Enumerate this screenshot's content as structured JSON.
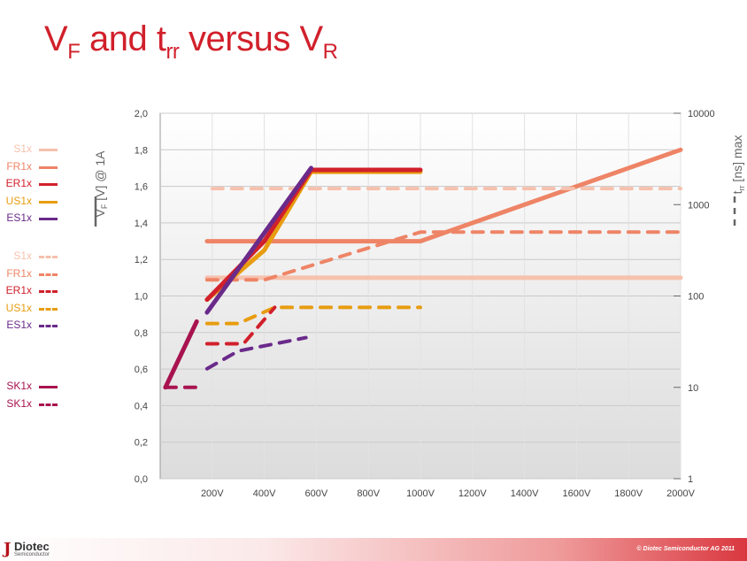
{
  "title": {
    "v": "V",
    "v_sub": "F",
    "and": " and t",
    "t_sub": "rr",
    "versus": " versus V",
    "r_sub": "R"
  },
  "legend": {
    "solid_items": [
      {
        "label": "S1x",
        "color": "#f6c1ad"
      },
      {
        "label": "FR1x",
        "color": "#ee8466"
      },
      {
        "label": "ER1x",
        "color": "#d1202b"
      },
      {
        "label": "US1x",
        "color": "#e89c0f"
      },
      {
        "label": "ES1x",
        "color": "#6a2a8a"
      }
    ],
    "dashed_items": [
      {
        "label": "S1x",
        "color": "#f6c1ad"
      },
      {
        "label": "FR1x",
        "color": "#ee8466"
      },
      {
        "label": "ER1x",
        "color": "#d1202b"
      },
      {
        "label": "US1x",
        "color": "#e89c0f"
      },
      {
        "label": "ES1x",
        "color": "#6a2a8a"
      }
    ],
    "sk_items": [
      {
        "label": "SK1x",
        "color": "#a8134f",
        "dashed": false
      },
      {
        "label": "SK1x",
        "color": "#a8134f",
        "dashed": true
      }
    ]
  },
  "chart_data": {
    "type": "line",
    "left_axis": {
      "label_main": "V",
      "label_sub": "F",
      "label_rest": " [V] @ 1A",
      "ylim": [
        0,
        2.0
      ],
      "ticks": [
        "0,0",
        "0,2",
        "0,4",
        "0,6",
        "0,8",
        "1,0",
        "1,2",
        "1,4",
        "1,6",
        "1,8",
        "2,0"
      ]
    },
    "right_axis": {
      "label_main": "t",
      "label_sub": "rr",
      "label_rest": " [ns] max",
      "scale": "log",
      "ylim": [
        1,
        10000
      ],
      "ticks": [
        "1",
        "10",
        "100",
        "1000",
        "10000"
      ]
    },
    "x_axis": {
      "range": [
        0,
        2000
      ],
      "ticks": [
        {
          "value": 200,
          "label": "200V"
        },
        {
          "value": 400,
          "label": "400V"
        },
        {
          "value": 600,
          "label": "600V"
        },
        {
          "value": 800,
          "label": "800V"
        },
        {
          "value": 1000,
          "label": "1000V"
        },
        {
          "value": 1200,
          "label": "1200V"
        },
        {
          "value": 1400,
          "label": "1400V"
        },
        {
          "value": 1600,
          "label": "1600V"
        },
        {
          "value": 1800,
          "label": "1800V"
        },
        {
          "value": 2000,
          "label": "2000V"
        }
      ]
    },
    "grid": true,
    "series": [
      {
        "name": "S1x",
        "measure": "VF",
        "color": "#f6c1ad",
        "dashed": false,
        "axis": "left",
        "points": [
          [
            180,
            1.1
          ],
          [
            2000,
            1.1
          ]
        ]
      },
      {
        "name": "FR1x",
        "measure": "VF",
        "color": "#ee8466",
        "dashed": false,
        "axis": "left",
        "points": [
          [
            180,
            1.3
          ],
          [
            1000,
            1.3
          ],
          [
            2000,
            1.8
          ]
        ]
      },
      {
        "name": "US1x",
        "measure": "VF",
        "color": "#e89c0f",
        "dashed": false,
        "axis": "left",
        "points": [
          [
            180,
            0.98
          ],
          [
            400,
            1.25
          ],
          [
            580,
            1.68
          ],
          [
            1000,
            1.68
          ]
        ]
      },
      {
        "name": "ER1x",
        "measure": "VF",
        "color": "#d1202b",
        "dashed": false,
        "axis": "left",
        "points": [
          [
            180,
            0.98
          ],
          [
            400,
            1.3
          ],
          [
            580,
            1.69
          ],
          [
            1000,
            1.69
          ]
        ]
      },
      {
        "name": "ES1x",
        "measure": "VF",
        "color": "#6a2a8a",
        "dashed": false,
        "axis": "left",
        "points": [
          [
            180,
            0.91
          ],
          [
            580,
            1.7
          ]
        ]
      },
      {
        "name": "SK1x",
        "measure": "VF",
        "color": "#a8134f",
        "dashed": false,
        "axis": "left",
        "points": [
          [
            20,
            0.5
          ],
          [
            140,
            0.86
          ]
        ]
      },
      {
        "name": "S1x",
        "measure": "trr",
        "color": "#f6c1ad",
        "dashed": true,
        "axis": "right",
        "points": [
          [
            200,
            1500
          ],
          [
            2000,
            1500
          ]
        ]
      },
      {
        "name": "FR1x",
        "measure": "trr",
        "color": "#ee8466",
        "dashed": true,
        "axis": "right",
        "points": [
          [
            180,
            150
          ],
          [
            400,
            150
          ],
          [
            1000,
            500
          ],
          [
            2000,
            500
          ]
        ]
      },
      {
        "name": "US1x",
        "measure": "trr",
        "color": "#e89c0f",
        "dashed": true,
        "axis": "right",
        "points": [
          [
            180,
            50
          ],
          [
            300,
            50
          ],
          [
            440,
            75
          ],
          [
            1000,
            75
          ]
        ]
      },
      {
        "name": "ER1x",
        "measure": "trr",
        "color": "#d1202b",
        "dashed": true,
        "axis": "right",
        "points": [
          [
            180,
            30
          ],
          [
            320,
            30
          ],
          [
            440,
            75
          ]
        ]
      },
      {
        "name": "ES1x",
        "measure": "trr",
        "color": "#6a2a8a",
        "dashed": true,
        "axis": "right",
        "points": [
          [
            180,
            16
          ],
          [
            300,
            25
          ],
          [
            560,
            35
          ]
        ]
      },
      {
        "name": "SK1x",
        "measure": "trr",
        "color": "#a8134f",
        "dashed": true,
        "axis": "right",
        "points": [
          [
            20,
            10
          ],
          [
            140,
            10
          ]
        ]
      }
    ]
  },
  "footer": {
    "logo_mark": "J",
    "logo_name": "Diotec",
    "logo_tag": "Semiconductor",
    "copyright": "© Diotec Semiconductor AG 2011"
  }
}
